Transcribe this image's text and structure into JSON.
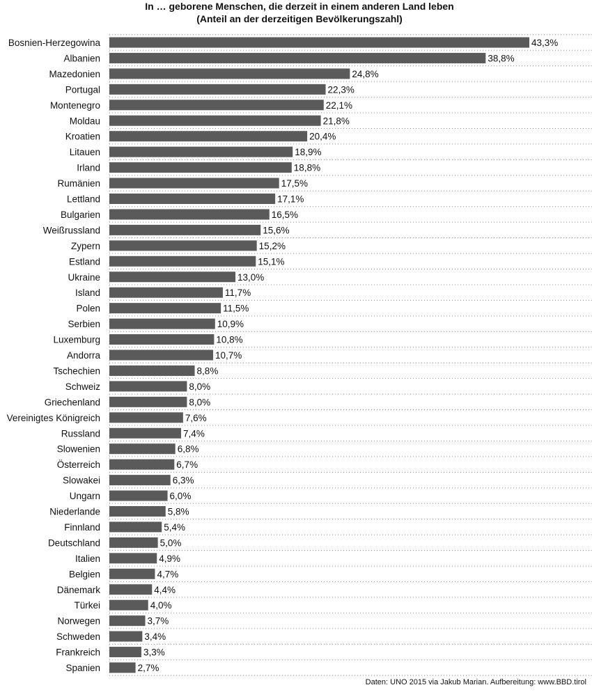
{
  "chart_data": {
    "type": "bar",
    "orientation": "horizontal",
    "title": "In … geborene Menschen, die derzeit in einem anderen Land leben",
    "subtitle": "(Anteil an der derzeitigen Bevölkerungszahl)",
    "source": "Daten: UNO 2015 via Jakub Marian. Aufbereitung: www.BBD.tirol",
    "categories": [
      "Bosnien-Herzegowina",
      "Albanien",
      "Mazedonien",
      "Portugal",
      "Montenegro",
      "Moldau",
      "Kroatien",
      "Litauen",
      "Irland",
      "Rumänien",
      "Lettland",
      "Bulgarien",
      "Weißrussland",
      "Zypern",
      "Estland",
      "Ukraine",
      "Island",
      "Polen",
      "Serbien",
      "Luxemburg",
      "Andorra",
      "Tschechien",
      "Schweiz",
      "Griechenland",
      "Vereinigtes Königreich",
      "Russland",
      "Slowenien",
      "Österreich",
      "Slowakei",
      "Ungarn",
      "Niederlande",
      "Finnland",
      "Deutschland",
      "Italien",
      "Belgien",
      "Dänemark",
      "Türkei",
      "Norwegen",
      "Schweden",
      "Frankreich",
      "Spanien"
    ],
    "values": [
      43.3,
      38.8,
      24.8,
      22.3,
      22.1,
      21.8,
      20.4,
      18.9,
      18.8,
      17.5,
      17.1,
      16.5,
      15.6,
      15.2,
      15.1,
      13.0,
      11.7,
      11.5,
      10.9,
      10.8,
      10.7,
      8.8,
      8.0,
      8.0,
      7.6,
      7.4,
      6.8,
      6.7,
      6.3,
      6.0,
      5.8,
      5.4,
      5.0,
      4.9,
      4.7,
      4.4,
      4.0,
      3.7,
      3.4,
      3.3,
      2.7
    ],
    "value_labels": [
      "43,3%",
      "38,8%",
      "24,8%",
      "22,3%",
      "22,1%",
      "21,8%",
      "20,4%",
      "18,9%",
      "18,8%",
      "17,5%",
      "17,1%",
      "16,5%",
      "15,6%",
      "15,2%",
      "15,1%",
      "13,0%",
      "11,7%",
      "11,5%",
      "10,9%",
      "10,8%",
      "10,7%",
      "8,8%",
      "8,0%",
      "8,0%",
      "7,6%",
      "7,4%",
      "6,8%",
      "6,7%",
      "6,3%",
      "6,0%",
      "5,8%",
      "5,4%",
      "5,0%",
      "4,9%",
      "4,7%",
      "4,4%",
      "4,0%",
      "3,7%",
      "3,4%",
      "3,3%",
      "2,7%"
    ],
    "xlim": [
      0,
      50
    ],
    "grid": "dotted horizontal separators",
    "bar_color": "#5a5a5a"
  }
}
